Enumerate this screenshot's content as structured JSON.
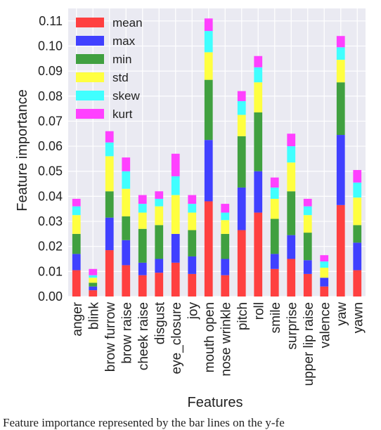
{
  "chart_data": {
    "type": "bar",
    "stacked": true,
    "xlabel": "Features",
    "ylabel": "Feature importance",
    "ylim": [
      0,
      0.115
    ],
    "yticks": [
      "0.00",
      "0.01",
      "0.02",
      "0.03",
      "0.04",
      "0.05",
      "0.06",
      "0.07",
      "0.08",
      "0.09",
      "0.10",
      "0.11"
    ],
    "grid": true,
    "legend_position": "top-left",
    "categories": [
      "anger",
      "blink",
      "brow furrow",
      "brow raise",
      "cheek raise",
      "disgust",
      "eye_closure",
      "joy",
      "mouth open",
      "nose wrinkle",
      "pitch",
      "roll",
      "smile",
      "surprise",
      "upper lip raise",
      "valence",
      "yaw",
      "yawn"
    ],
    "series": [
      {
        "name": "mean",
        "color": "#ff4040",
        "values": [
          0.0105,
          0.0025,
          0.0185,
          0.0125,
          0.0085,
          0.0095,
          0.0135,
          0.009,
          0.038,
          0.0085,
          0.0265,
          0.0335,
          0.011,
          0.015,
          0.009,
          0.004,
          0.0365,
          0.0105
        ]
      },
      {
        "name": "max",
        "color": "#4040ff",
        "values": [
          0.0065,
          0.0015,
          0.013,
          0.01,
          0.005,
          0.0055,
          0.0115,
          0.007,
          0.0245,
          0.0065,
          0.017,
          0.0165,
          0.006,
          0.0095,
          0.0055,
          0.0035,
          0.028,
          0.011
        ]
      },
      {
        "name": "min",
        "color": "#40a040",
        "values": [
          0.008,
          0.0015,
          0.0105,
          0.0095,
          0.0135,
          0.0135,
          0.0,
          0.0105,
          0.024,
          0.01,
          0.0205,
          0.0235,
          0.014,
          0.0175,
          0.011,
          0.0,
          0.021,
          0.007
        ]
      },
      {
        "name": "std",
        "color": "#ffff40",
        "values": [
          0.0075,
          0.002,
          0.014,
          0.011,
          0.0065,
          0.0075,
          0.0155,
          0.007,
          0.011,
          0.0055,
          0.0085,
          0.012,
          0.008,
          0.0115,
          0.007,
          0.004,
          0.009,
          0.011
        ]
      },
      {
        "name": "skew",
        "color": "#40ffff",
        "values": [
          0.0035,
          0.001,
          0.0055,
          0.007,
          0.0035,
          0.003,
          0.0075,
          0.0035,
          0.0085,
          0.003,
          0.0055,
          0.006,
          0.0045,
          0.0065,
          0.0035,
          0.0025,
          0.005,
          0.006
        ]
      },
      {
        "name": "kurt",
        "color": "#ff40ff",
        "values": [
          0.003,
          0.0025,
          0.0045,
          0.0055,
          0.0035,
          0.003,
          0.009,
          0.0035,
          0.005,
          0.0035,
          0.004,
          0.0045,
          0.004,
          0.005,
          0.003,
          0.0025,
          0.0045,
          0.005
        ]
      }
    ]
  },
  "caption": "Feature importance represented by the bar lines on the y-fe"
}
